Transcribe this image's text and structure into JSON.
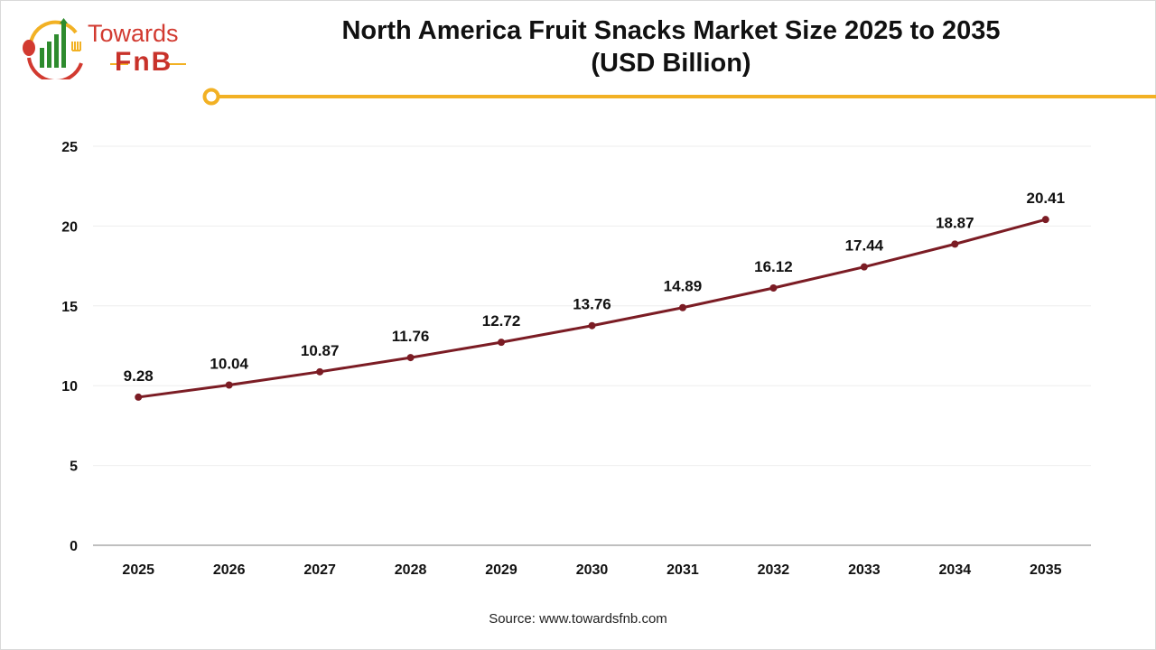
{
  "brand": {
    "line1": "Towards",
    "line2": "FnB"
  },
  "source": "Source: www.towardsfnb.com",
  "colors": {
    "line": "#7b1c24",
    "accent": "#f2b124",
    "logo_red": "#d23a30",
    "logo_green": "#2e8b2e"
  },
  "chart_data": {
    "type": "line",
    "title": "North America Fruit Snacks Market Size 2025 to 2035",
    "subtitle": "(USD Billion)",
    "categories": [
      "2025",
      "2026",
      "2027",
      "2028",
      "2029",
      "2030",
      "2031",
      "2032",
      "2033",
      "2034",
      "2035"
    ],
    "values": [
      9.28,
      10.04,
      10.87,
      11.76,
      12.72,
      13.76,
      14.89,
      16.12,
      17.44,
      18.87,
      20.41
    ],
    "value_labels": [
      "9.28",
      "10.04",
      "10.87",
      "11.76",
      "12.72",
      "13.76",
      "14.89",
      "16.12",
      "17.44",
      "18.87",
      "20.41"
    ],
    "ylim": [
      0,
      25
    ],
    "yticks": [
      "0",
      "5",
      "10",
      "15",
      "20",
      "25"
    ],
    "grid": true,
    "xlabel": "",
    "ylabel": ""
  }
}
